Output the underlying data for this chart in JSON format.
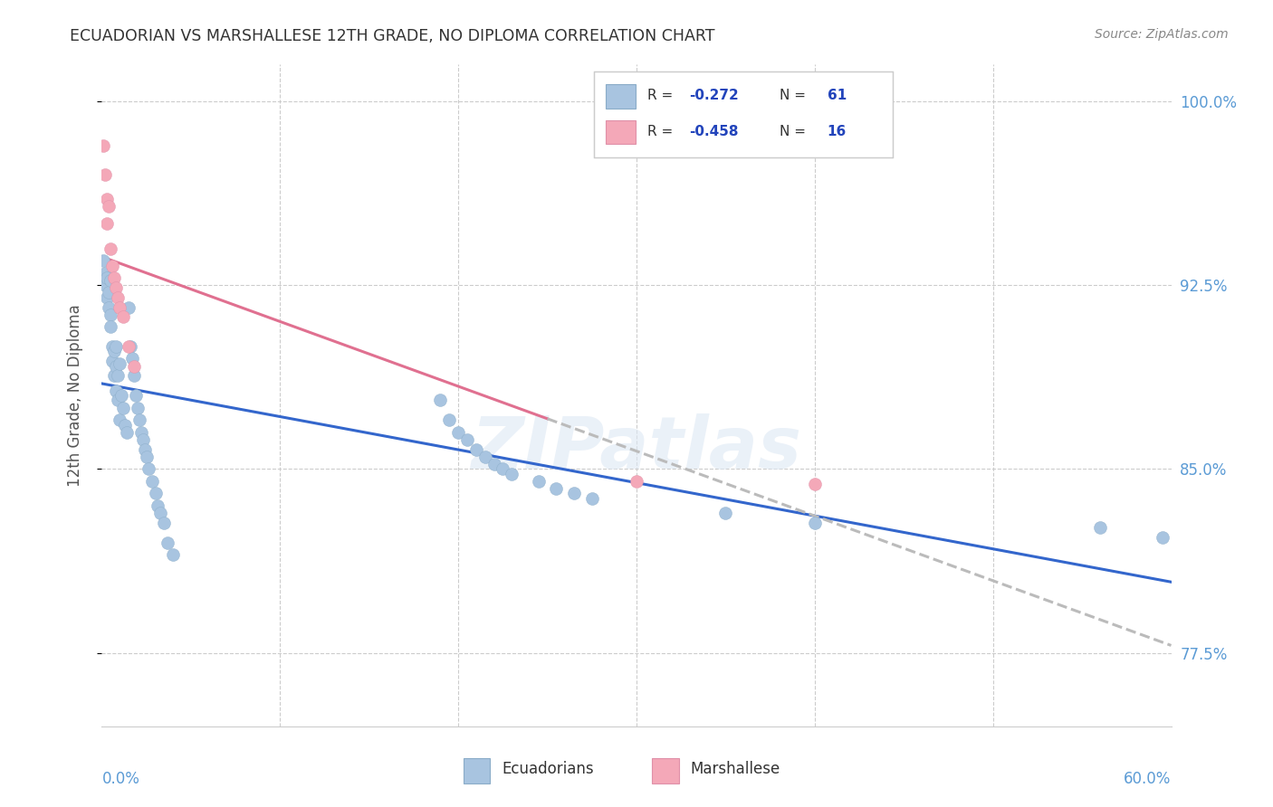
{
  "title": "ECUADORIAN VS MARSHALLESE 12TH GRADE, NO DIPLOMA CORRELATION CHART",
  "source": "Source: ZipAtlas.com",
  "ylabel": "12th Grade, No Diploma",
  "xmin": 0.0,
  "xmax": 0.6,
  "ymin": 0.745,
  "ymax": 1.015,
  "blue_color": "#a8c4e0",
  "pink_color": "#f4a8b8",
  "blue_line_color": "#3366cc",
  "pink_line_color": "#e07090",
  "axis_label_color": "#5b9bd5",
  "title_color": "#333333",
  "source_color": "#888888",
  "watermark": "ZIPatlas",
  "legend_R_blue": "-0.272",
  "legend_N_blue": "61",
  "legend_R_pink": "-0.458",
  "legend_N_pink": "16",
  "label_ecuadorians": "Ecuadorians",
  "label_marshallese": "Marshallese",
  "blue_scatter_x": [
    0.001,
    0.002,
    0.002,
    0.003,
    0.003,
    0.004,
    0.004,
    0.005,
    0.005,
    0.005,
    0.006,
    0.006,
    0.007,
    0.007,
    0.008,
    0.008,
    0.008,
    0.009,
    0.009,
    0.01,
    0.01,
    0.011,
    0.012,
    0.013,
    0.014,
    0.015,
    0.016,
    0.017,
    0.018,
    0.019,
    0.02,
    0.021,
    0.022,
    0.023,
    0.024,
    0.025,
    0.026,
    0.028,
    0.03,
    0.031,
    0.033,
    0.035,
    0.037,
    0.04,
    0.19,
    0.195,
    0.2,
    0.205,
    0.21,
    0.215,
    0.22,
    0.225,
    0.23,
    0.245,
    0.255,
    0.265,
    0.275,
    0.35,
    0.4,
    0.56,
    0.595
  ],
  "blue_scatter_y": [
    0.935,
    0.93,
    0.925,
    0.92,
    0.928,
    0.922,
    0.916,
    0.927,
    0.913,
    0.908,
    0.9,
    0.894,
    0.898,
    0.888,
    0.9,
    0.892,
    0.882,
    0.888,
    0.878,
    0.893,
    0.87,
    0.88,
    0.875,
    0.868,
    0.865,
    0.916,
    0.9,
    0.895,
    0.888,
    0.88,
    0.875,
    0.87,
    0.865,
    0.862,
    0.858,
    0.855,
    0.85,
    0.845,
    0.84,
    0.835,
    0.832,
    0.828,
    0.82,
    0.815,
    0.878,
    0.87,
    0.865,
    0.862,
    0.858,
    0.855,
    0.852,
    0.85,
    0.848,
    0.845,
    0.842,
    0.84,
    0.838,
    0.832,
    0.828,
    0.826,
    0.822
  ],
  "pink_scatter_x": [
    0.001,
    0.002,
    0.003,
    0.003,
    0.004,
    0.005,
    0.006,
    0.007,
    0.008,
    0.009,
    0.01,
    0.012,
    0.015,
    0.018,
    0.3,
    0.4
  ],
  "pink_scatter_y": [
    0.982,
    0.97,
    0.96,
    0.95,
    0.957,
    0.94,
    0.933,
    0.928,
    0.924,
    0.92,
    0.916,
    0.912,
    0.9,
    0.892,
    0.845,
    0.844
  ]
}
